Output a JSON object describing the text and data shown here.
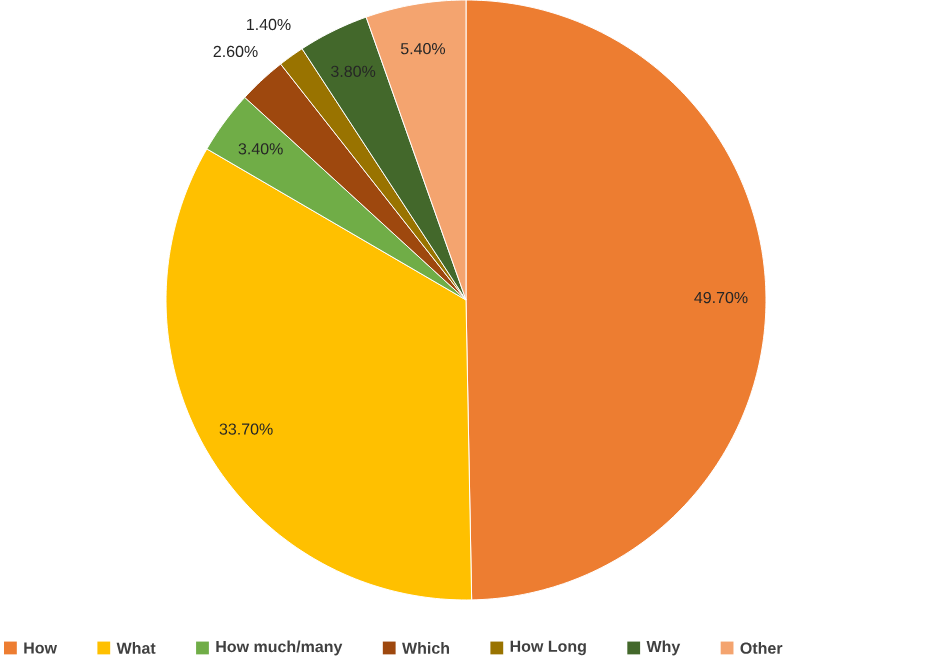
{
  "chart_data": {
    "type": "pie",
    "categories": [
      "How",
      "What",
      "How much/many",
      "Which",
      "How Long",
      "Why",
      "Other"
    ],
    "values": [
      49.7,
      33.7,
      3.4,
      2.6,
      1.4,
      3.8,
      5.4
    ],
    "value_labels": [
      "49.70%",
      "33.70%",
      "3.40%",
      "2.60%",
      "1.40%",
      "3.80%",
      "5.40%"
    ],
    "colors": [
      "#ed7d31",
      "#ffc000",
      "#70ad47",
      "#9e480e",
      "#997300",
      "#43682b",
      "#f4a46f"
    ],
    "legend": "bottom"
  }
}
